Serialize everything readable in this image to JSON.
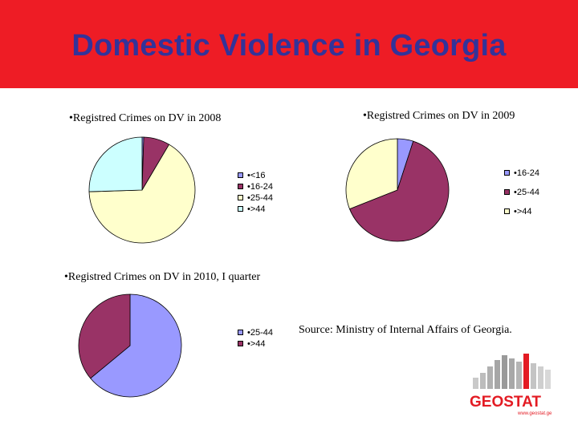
{
  "slide": {
    "title": "Domestic Violence in Georgia",
    "source": "Source: Ministry of Internal Affairs  of Georgia."
  },
  "colors": {
    "banner": "#ee1c25",
    "title": "#333399"
  },
  "logo": {
    "text": "GEOSTAT",
    "url": "www.geostat.ge"
  },
  "chart_data": [
    {
      "type": "pie",
      "title": "•Registred Crimes on DV in 2008",
      "categories": [
        "•<16",
        "•16-24",
        "•25-44",
        "•>44"
      ],
      "values": [
        0.5,
        8,
        66,
        25.5
      ],
      "colors": [
        "#9999ff",
        "#993366",
        "#ffffcc",
        "#ccffff"
      ],
      "legend_position": "right"
    },
    {
      "type": "pie",
      "title": "•Registred Crimes on DV in 2009",
      "categories": [
        "•16-24",
        "•25-44",
        "•>44"
      ],
      "values": [
        5,
        64,
        31
      ],
      "colors": [
        "#9999ff",
        "#993366",
        "#ffffcc"
      ],
      "legend_position": "left"
    },
    {
      "type": "pie",
      "title": "•Registred Crimes on DV in 2010, I quarter",
      "categories": [
        "•25-44",
        "•>44"
      ],
      "values": [
        64,
        36
      ],
      "colors": [
        "#9999ff",
        "#993366"
      ],
      "legend_position": "right"
    }
  ]
}
